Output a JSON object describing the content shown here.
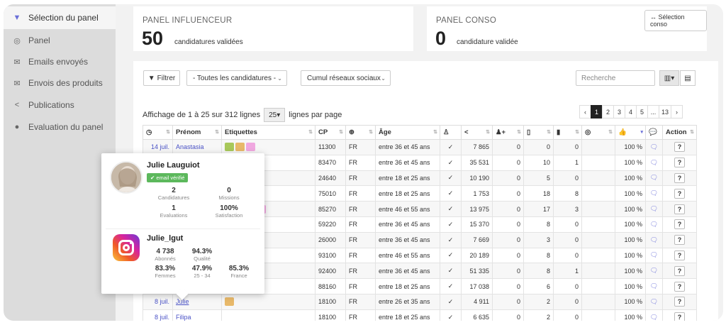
{
  "sidebar": {
    "items": [
      {
        "label": "Sélection du panel",
        "icon": "filter-icon"
      },
      {
        "label": "Panel",
        "icon": "eye-mask-icon"
      },
      {
        "label": "Emails envoyés",
        "icon": "envelope-icon"
      },
      {
        "label": "Envois des produits",
        "icon": "envelope-outline-icon"
      },
      {
        "label": "Publications",
        "icon": "share-icon"
      },
      {
        "label": "Evaluation du panel",
        "icon": "check-circle-icon"
      }
    ]
  },
  "influenceur": {
    "title": "PANEL INFLUENCEUR",
    "count": "50",
    "sub": "candidatures validées"
  },
  "conso": {
    "title": "PANEL CONSO",
    "count": "0",
    "sub": "candidature validée",
    "button": "Sélection conso"
  },
  "toolbar": {
    "filter_label": "Filtrer",
    "candidatures_select": "- Toutes les candidatures -",
    "reseaux_select": "Cumul réseaux sociaux",
    "search_placeholder": "Recherche"
  },
  "listing": {
    "info_prefix": "Affichage de 1 à 25 sur 312 lignes",
    "per_page": "25",
    "info_suffix": "lignes par page",
    "pages": [
      "‹",
      "1",
      "2",
      "3",
      "4",
      "5",
      "...",
      "13",
      "›"
    ]
  },
  "table": {
    "headers": [
      "",
      "Prénom",
      "Etiquettes",
      "CP",
      "",
      "Âge",
      "",
      "",
      "",
      "",
      "",
      "",
      "",
      "",
      "",
      "Action"
    ],
    "rows": [
      {
        "date": "14 juil.",
        "name": "Anastasia",
        "tags": [
          "#a8c85a",
          "#e8b96a",
          "#f0a8e0"
        ],
        "cp": "11300",
        "country": "FR",
        "age": "entre 36 et 45 ans",
        "reach": "7 865",
        "a": "0",
        "b": "0",
        "c": "0",
        "pct": "100 %"
      },
      {
        "date": "",
        "name": "",
        "tags": [],
        "cp": "83470",
        "country": "FR",
        "age": "entre 36 et 45 ans",
        "reach": "35 531",
        "a": "0",
        "b": "10",
        "c": "1",
        "pct": "100 %"
      },
      {
        "date": "",
        "name": "",
        "tags": [],
        "cp": "24640",
        "country": "FR",
        "age": "entre 18 et 25 ans",
        "reach": "10 190",
        "a": "0",
        "b": "5",
        "c": "0",
        "pct": "100 %"
      },
      {
        "date": "",
        "name": "",
        "tags": [],
        "cp": "75010",
        "country": "FR",
        "age": "entre 18 et 25 ans",
        "reach": "1 753",
        "a": "0",
        "b": "18",
        "c": "8",
        "pct": "100 %"
      },
      {
        "date": "",
        "name": "",
        "tags": [
          "#e07070",
          "#e07070",
          "#e07070",
          "#f0a8e0"
        ],
        "cp": "85270",
        "country": "FR",
        "age": "entre 46 et 55 ans",
        "reach": "13 975",
        "a": "0",
        "b": "17",
        "c": "3",
        "pct": "100 %"
      },
      {
        "date": "",
        "name": "",
        "tags": [],
        "cp": "59220",
        "country": "FR",
        "age": "entre 36 et 45 ans",
        "reach": "15 370",
        "a": "0",
        "b": "8",
        "c": "0",
        "pct": "100 %"
      },
      {
        "date": "",
        "name": "",
        "tags": [],
        "cp": "26000",
        "country": "FR",
        "age": "entre 36 et 45 ans",
        "reach": "7 669",
        "a": "0",
        "b": "3",
        "c": "0",
        "pct": "100 %"
      },
      {
        "date": "",
        "name": "",
        "tags": [],
        "cp": "93100",
        "country": "FR",
        "age": "entre 46 et 55 ans",
        "reach": "20 189",
        "a": "0",
        "b": "8",
        "c": "0",
        "pct": "100 %"
      },
      {
        "date": "",
        "name": "",
        "tags": [],
        "cp": "92400",
        "country": "FR",
        "age": "entre 36 et 45 ans",
        "reach": "51 335",
        "a": "0",
        "b": "8",
        "c": "1",
        "pct": "100 %"
      },
      {
        "date": "",
        "name": "",
        "tags": [],
        "cp": "88160",
        "country": "FR",
        "age": "entre 18 et 25 ans",
        "reach": "17 038",
        "a": "0",
        "b": "6",
        "c": "0",
        "pct": "100 %"
      },
      {
        "date": "8 juil.",
        "name": "Julie",
        "tags": [
          "#e8b96a"
        ],
        "cp": "18100",
        "country": "FR",
        "age": "entre 26 et 35 ans",
        "reach": "4 911",
        "a": "0",
        "b": "2",
        "c": "0",
        "pct": "100 %"
      },
      {
        "date": "8 juil.",
        "name": "Filipa",
        "tags": [],
        "cp": "18100",
        "country": "FR",
        "age": "entre 18 et 25 ans",
        "reach": "6 635",
        "a": "0",
        "b": "2",
        "c": "0",
        "pct": "100 %"
      }
    ]
  },
  "popup": {
    "name": "Julie Lauguiot",
    "verified": "email vérifié",
    "stats": [
      {
        "value": "2",
        "label": "Candidatures"
      },
      {
        "value": "0",
        "label": "Missions"
      },
      {
        "value": "1",
        "label": "Evaluations"
      },
      {
        "value": "100%",
        "label": "Satisfaction"
      }
    ],
    "insta_handle": "Julie_lgut",
    "insta_stats": [
      {
        "value": "4 738",
        "label": "Abonnés"
      },
      {
        "value": "94.3%",
        "label": "Qualité"
      },
      {
        "value": "83.3%",
        "label": "Femmes"
      },
      {
        "value": "47.9%",
        "label": "25 - 34"
      },
      {
        "value": "85.3%",
        "label": "France"
      }
    ]
  }
}
